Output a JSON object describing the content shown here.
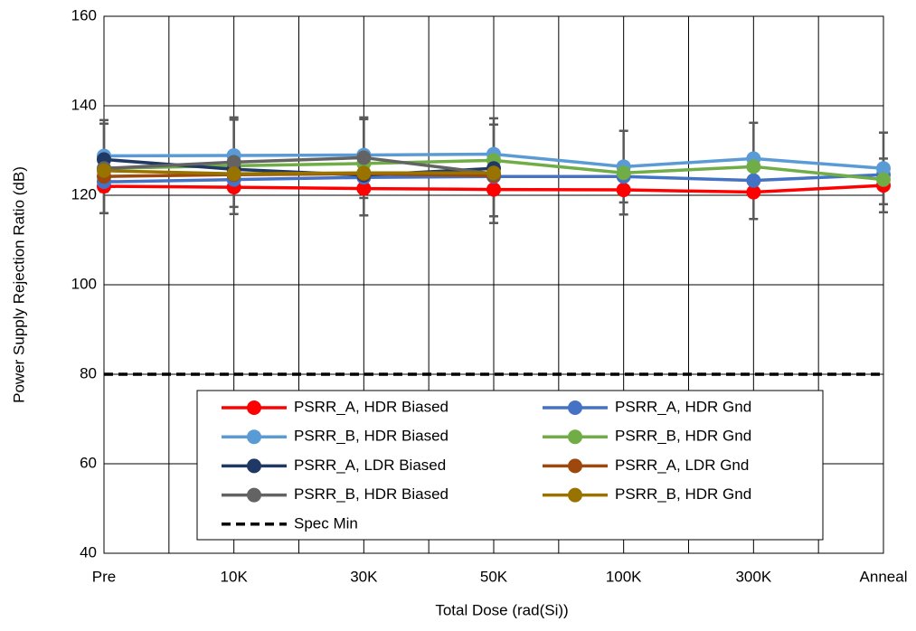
{
  "chart_data": {
    "type": "line",
    "x_label": "Total Dose (rad(Si))",
    "y_label": "Power Supply Rejection Ratio (dB)",
    "categories": [
      "Pre",
      "10K",
      "30K",
      "50K",
      "100K",
      "300K",
      "Anneal"
    ],
    "ylim": [
      40,
      160
    ],
    "yticks": [
      40,
      60,
      80,
      100,
      120,
      140,
      160
    ],
    "grid": true,
    "error_color": "#595959",
    "series": [
      {
        "name": "PSRR_A, HDR Biased",
        "color": "#ff0000",
        "values": [
          122,
          121.8,
          121.5,
          121.3,
          121.2,
          120.7,
          122.2
        ],
        "errors": [
          6,
          6,
          6,
          6,
          5.5,
          6,
          6
        ]
      },
      {
        "name": "PSRR_A, HDR Gnd",
        "color": "#4472c4",
        "values": [
          123,
          123.5,
          124,
          124.2,
          124.2,
          123.3,
          124.6
        ]
      },
      {
        "name": "PSRR_B, HDR Biased",
        "color": "#5b9bd5",
        "values": [
          128.8,
          128.9,
          129,
          129.2,
          126.4,
          128.2,
          126
        ],
        "errors": [
          8,
          8,
          8,
          8,
          8,
          8,
          8
        ]
      },
      {
        "name": "PSRR_B, HDR Gnd",
        "color": "#70ad47",
        "values": [
          126,
          126.6,
          127.1,
          127.8,
          125,
          126.4,
          123.5
        ]
      },
      {
        "name": "PSRR_A, LDR Biased",
        "color": "#203864",
        "values": [
          128,
          125.8,
          124.5,
          126,
          null,
          null,
          null
        ]
      },
      {
        "name": "PSRR_A, LDR Gnd",
        "color": "#9e480e",
        "values": [
          124.2,
          124.6,
          124.8,
          124.4,
          null,
          null,
          null
        ]
      },
      {
        "name": "PSRR_B, HDR Biased",
        "color": "#636363",
        "values": [
          126,
          127.4,
          128.4,
          124.8,
          null,
          null,
          null
        ],
        "errors": [
          10,
          10,
          9,
          11,
          null,
          null,
          null
        ]
      },
      {
        "name": "PSRR_B, HDR Gnd",
        "color": "#997300",
        "values": [
          125.5,
          124.8,
          125,
          125,
          null,
          null,
          null
        ]
      },
      {
        "name": "Spec Min",
        "color": "#000000",
        "style": "dashed",
        "values": [
          80,
          80,
          80,
          80,
          80,
          80,
          80
        ]
      }
    ]
  }
}
